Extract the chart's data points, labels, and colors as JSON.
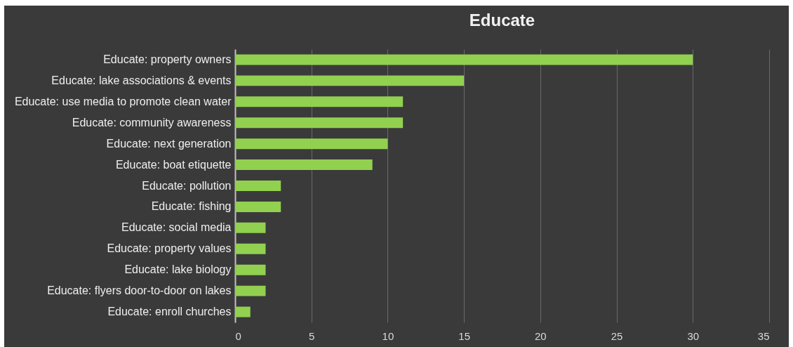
{
  "chart_data": {
    "type": "bar",
    "orientation": "horizontal",
    "title": "Educate",
    "categories": [
      "Educate: property owners",
      "Educate: lake associations & events",
      "Educate: use media to promote clean water",
      "Educate: community awareness",
      "Educate: next generation",
      "Educate: boat etiquette",
      "Educate: pollution",
      "Educate: fishing",
      "Educate: social media",
      "Educate: property values ",
      "Educate: lake biology",
      "Educate: flyers door-to-door on lakes",
      "Educate: enroll churches"
    ],
    "values": [
      30,
      15,
      11,
      11,
      10,
      9,
      3,
      3,
      2,
      2,
      2,
      2,
      1
    ],
    "color": "#92d050",
    "xlim": [
      0,
      35
    ],
    "xticks": [
      0,
      5,
      10,
      15,
      20,
      25,
      30,
      35
    ],
    "grid": "x"
  }
}
